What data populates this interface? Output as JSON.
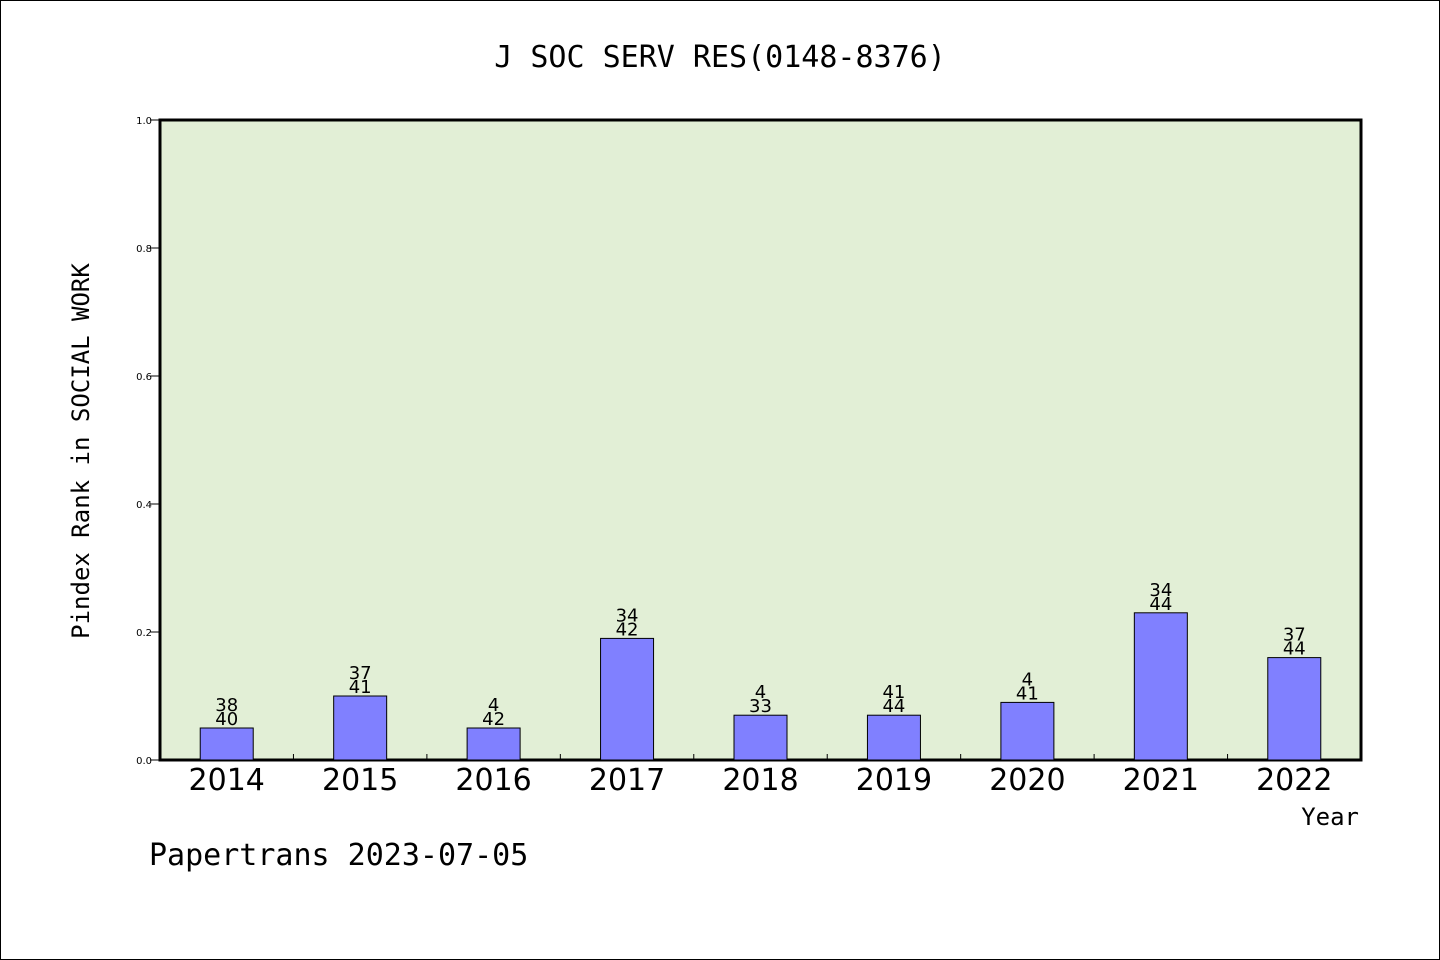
{
  "chart_data": {
    "type": "bar",
    "title": "J SOC SERV RES(0148-8376)",
    "xlabel": "Year",
    "ylabel": "Pindex Rank in SOCIAL WORK",
    "ylim": [
      0,
      1.0
    ],
    "yticks": [
      "0.0",
      "0.2",
      "0.4",
      "0.6",
      "0.8",
      "1.0"
    ],
    "grid": false,
    "categories": [
      "2014",
      "2015",
      "2016",
      "2017",
      "2018",
      "2019",
      "2020",
      "2021",
      "2022"
    ],
    "values": [
      0.05,
      0.1,
      0.05,
      0.19,
      0.07,
      0.07,
      0.09,
      0.23,
      0.16
    ],
    "rank_labels": [
      "38",
      "37",
      "4",
      "34",
      "4",
      "41",
      "4",
      "34",
      "37"
    ],
    "total_labels": [
      "40",
      "41",
      "42",
      "42",
      "33",
      "44",
      "41",
      "44",
      "44"
    ],
    "colors": {
      "bar": "#8080ff",
      "plot_bg": "#e2efd6",
      "axis": "#000000"
    }
  },
  "footer": "Papertrans 2023-07-05"
}
